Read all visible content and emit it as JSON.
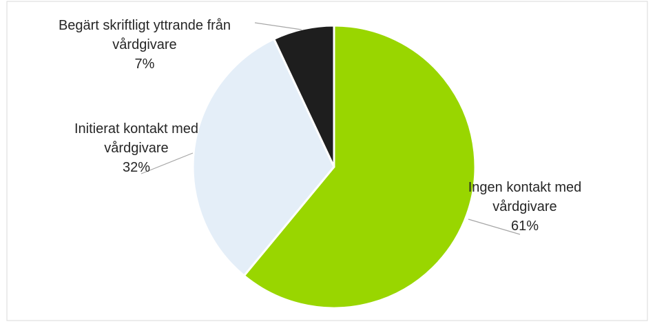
{
  "chart_data": {
    "type": "pie",
    "categories": [
      "Ingen kontakt med vårdgivare",
      "Initierat kontakt med vårdgivare",
      "Begärt skriftligt yttrande från vårdgivare"
    ],
    "values": [
      61,
      32,
      7
    ],
    "value_labels": [
      "61%",
      "32%",
      "7%"
    ],
    "colors": [
      "#99d600",
      "#e4eef8",
      "#1e1e1e"
    ]
  }
}
